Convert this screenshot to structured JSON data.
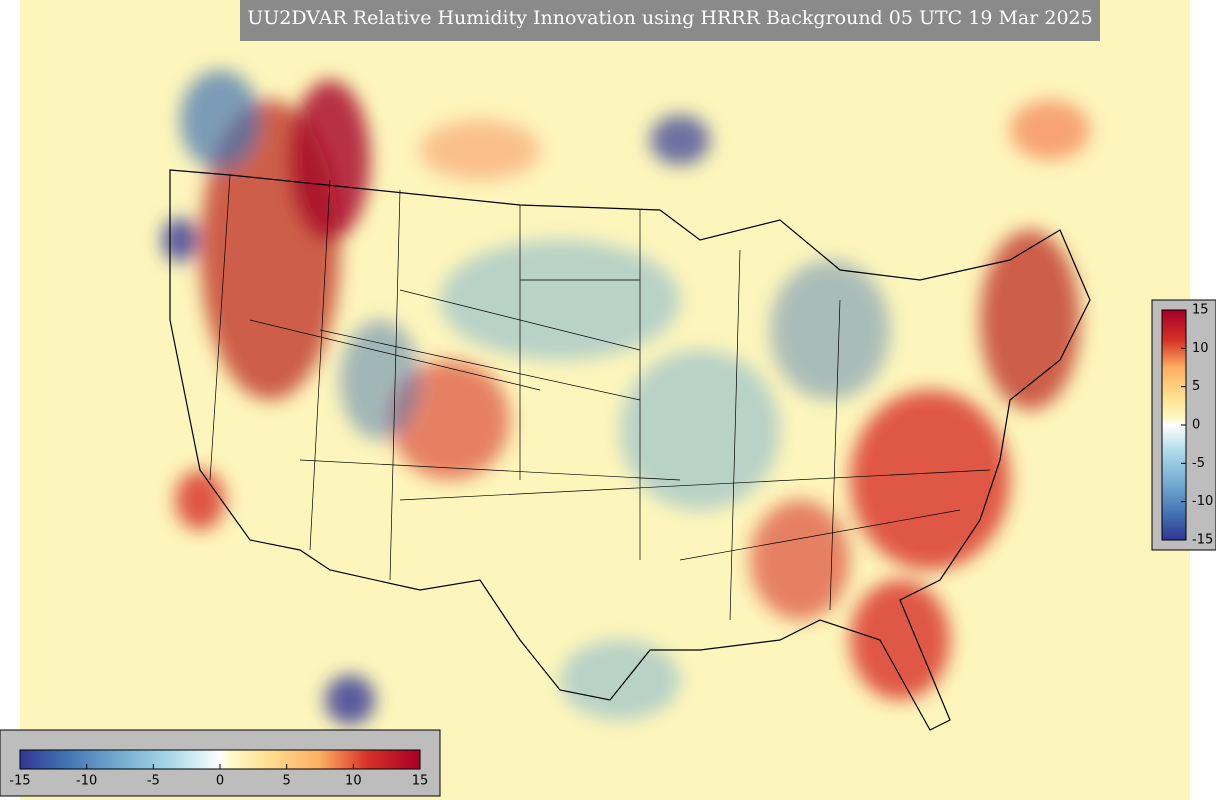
{
  "title": "UU2DVAR Relative Humidity Innovation using HRRR Background 05 UTC 19 Mar 2025",
  "colorbar": {
    "lim": [
      -15,
      15
    ],
    "ticks": [
      -15,
      -10,
      -5,
      0,
      5,
      10,
      15
    ]
  }
}
